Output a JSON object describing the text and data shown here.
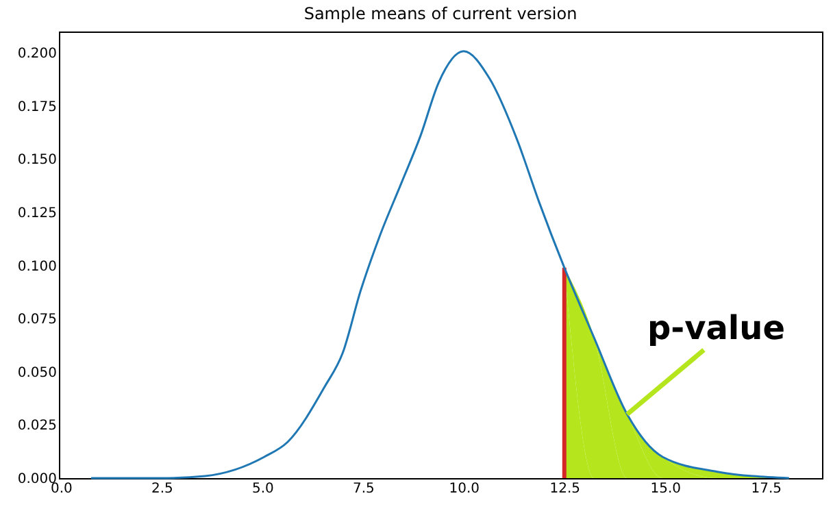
{
  "chart_data": {
    "type": "line",
    "title": "Sample means of current version",
    "xlim": [
      -0.05,
      18.9
    ],
    "xticks": [
      {
        "value": 0,
        "label": "0.0"
      },
      2.5,
      {
        "value": 5,
        "label": "5.0"
      },
      7.5,
      {
        "value": 10,
        "label": "10.0"
      },
      12.5,
      {
        "value": 15,
        "label": "15.0"
      },
      17.5
    ],
    "ylim": [
      0,
      0.21
    ],
    "yticks": [
      {
        "value": 0,
        "label": "0.000"
      },
      0.025,
      {
        "value": 0.05,
        "label": "0.050"
      },
      0.075,
      {
        "value": 0.1,
        "label": "0.100"
      },
      0.125,
      {
        "value": 0.15,
        "label": "0.150"
      },
      0.175,
      {
        "value": 0.2,
        "label": "0.200"
      }
    ],
    "grid": false,
    "series": [
      {
        "type": "area",
        "color": "#b5e61d",
        "x": [
          12.5,
          13.24,
          14.06,
          14.94,
          16.3,
          18.08
        ],
        "values": [
          0.099,
          0.066,
          0.03,
          0.01,
          0.003,
          0
        ]
      },
      {
        "type": "line",
        "color": "#d62728",
        "x": [
          12.5,
          12.5
        ],
        "values": [
          0,
          0.099
        ]
      },
      {
        "color": "#1f77b4",
        "x": [
          0.75,
          2.5,
          3.58,
          5.05,
          5.63,
          6.55,
          7.0,
          7.44,
          7.9,
          8.46,
          8.93,
          9.38,
          10.0,
          10.64,
          11.33,
          11.87,
          12.5,
          13.24,
          14.06,
          14.94,
          16.3,
          18.08
        ],
        "values": [
          0,
          0,
          0.001,
          0.01,
          0.017,
          0.043,
          0.059,
          0.088,
          0.113,
          0.139,
          0.161,
          0.186,
          0.2007,
          0.188,
          0.159,
          0.13,
          0.099,
          0.066,
          0.03,
          0.01,
          0.003,
          0
        ]
      }
    ],
    "annotations": [
      {
        "text": "p-value",
        "x": 14.06,
        "y": 0.03
      }
    ]
  }
}
